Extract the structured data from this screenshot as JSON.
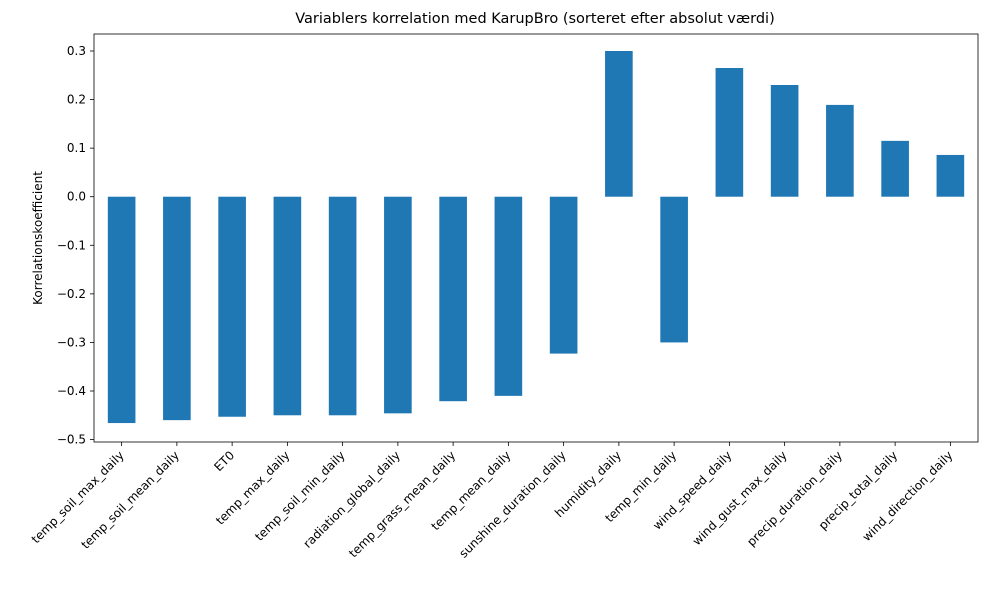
{
  "chart_data": {
    "type": "bar",
    "title": "Variablers korrelation med KarupBro (sorteret efter absolut værdi)",
    "xlabel": "",
    "ylabel": "Korrelationskoefficient",
    "categories": [
      "temp_soil_max_daily",
      "temp_soil_mean_daily",
      "ET0",
      "temp_max_daily",
      "temp_soil_min_daily",
      "radiation_global_daily",
      "temp_grass_mean_daily",
      "temp_mean_daily",
      "sunshine_duration_daily",
      "humidity_daily",
      "temp_min_daily",
      "wind_speed_daily",
      "wind_gust_max_daily",
      "precip_duration_daily",
      "precip_total_daily",
      "wind_direction_daily"
    ],
    "values": [
      -0.466,
      -0.46,
      -0.453,
      -0.45,
      -0.45,
      -0.446,
      -0.421,
      -0.41,
      -0.323,
      0.3,
      -0.3,
      0.265,
      0.23,
      0.189,
      0.115,
      0.086
    ],
    "ylim": [
      -0.505,
      0.335
    ],
    "yticks": [
      -0.5,
      -0.4,
      -0.3,
      -0.2,
      -0.1,
      0.0,
      0.1,
      0.2,
      0.3
    ],
    "ytick_labels": [
      "−0.5",
      "−0.4",
      "−0.3",
      "−0.2",
      "−0.1",
      "0.0",
      "0.1",
      "0.2",
      "0.3"
    ],
    "bar_color": "#1f77b4",
    "grid": false,
    "legend": "none"
  }
}
